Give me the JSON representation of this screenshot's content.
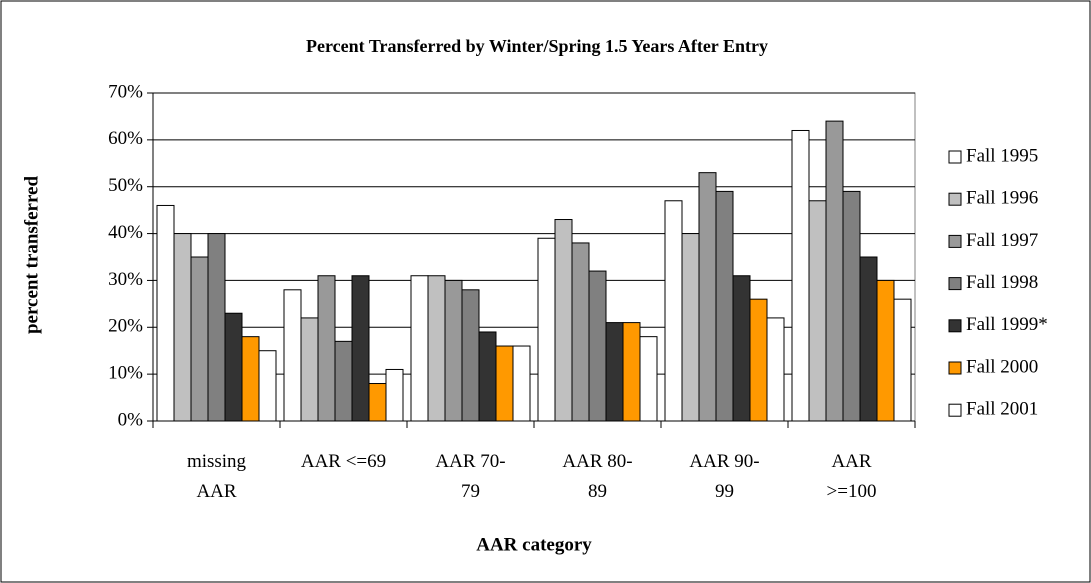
{
  "chart_data": {
    "type": "bar",
    "title": "Percent Transferred by Winter/Spring 1.5 Years After Entry",
    "y_label": "percent transferred",
    "x_label": "AAR category",
    "categories": [
      "missing AAR",
      "AAR <=69",
      "AAR 70-79",
      "AAR 80-89",
      "AAR 90-99",
      "AAR >=100"
    ],
    "series": [
      {
        "name": "Fall 1995",
        "color": "#ffffff",
        "values": [
          46,
          28,
          31,
          39,
          47,
          62
        ]
      },
      {
        "name": "Fall 1996",
        "color": "#c0c0c0",
        "values": [
          40,
          22,
          31,
          43,
          40,
          47
        ]
      },
      {
        "name": "Fall 1997",
        "color": "#999999",
        "values": [
          35,
          31,
          30,
          38,
          53,
          64
        ]
      },
      {
        "name": "Fall 1998",
        "color": "#808080",
        "values": [
          40,
          17,
          28,
          32,
          49,
          49
        ]
      },
      {
        "name": "Fall 1999*",
        "color": "#333333",
        "values": [
          23,
          31,
          19,
          21,
          31,
          35
        ]
      },
      {
        "name": "Fall 2000",
        "color": "#ff9900",
        "values": [
          18,
          8,
          16,
          21,
          26,
          30
        ]
      },
      {
        "name": "Fall 2001",
        "color": "#ffffff",
        "values": [
          15,
          11,
          16,
          18,
          22,
          26
        ]
      }
    ],
    "ylim": [
      0,
      70
    ],
    "yticks": [
      {
        "value": 0,
        "label": "0%"
      },
      {
        "value": 10,
        "label": "10%"
      },
      {
        "value": 20,
        "label": "20%"
      },
      {
        "value": 30,
        "label": "30%"
      },
      {
        "value": 40,
        "label": "40%"
      },
      {
        "value": 50,
        "label": "50%"
      },
      {
        "value": 60,
        "label": "60%"
      },
      {
        "value": 70,
        "label": "70%"
      }
    ],
    "grid": true,
    "legend": "right"
  }
}
